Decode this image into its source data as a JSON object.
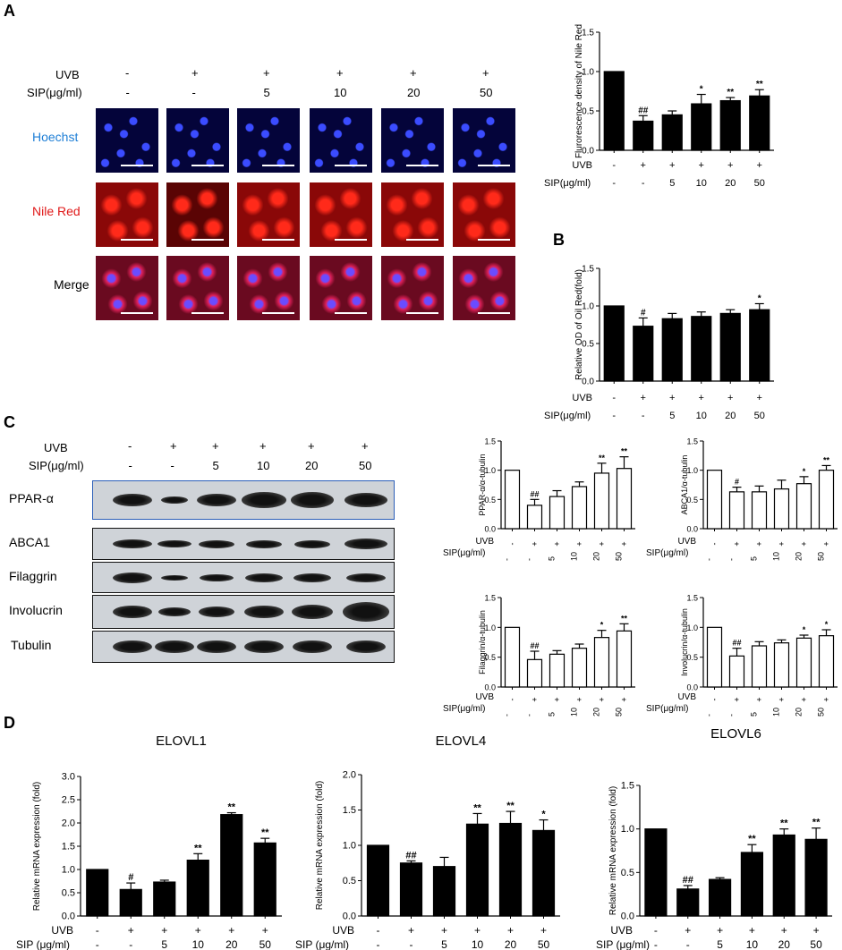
{
  "panels": {
    "A": "A",
    "B": "B",
    "C": "C",
    "D": "D"
  },
  "conditions": {
    "uvb_label": "UVB",
    "sip_label": "SIP(μg/ml)",
    "sip_label_spaced": "SIP (μg/ml)",
    "uvb": [
      "-",
      "+",
      "+",
      "+",
      "+",
      "+"
    ],
    "sip": [
      "-",
      "-",
      "5",
      "10",
      "20",
      "50"
    ]
  },
  "microscopy": {
    "rows": [
      {
        "label": "Hoechst",
        "color": "#1f7fd6"
      },
      {
        "label": "Nile Red",
        "color": "#e01818"
      },
      {
        "label": "Merge",
        "color": "#000000"
      }
    ]
  },
  "blots": {
    "rows": [
      "PPAR-α",
      "ABCA1",
      "Filaggrin",
      "Involucrin",
      "Tubulin"
    ]
  },
  "chart_data": [
    {
      "id": "A",
      "type": "bar",
      "categories": [
        "-/-",
        "+/-",
        "+/5",
        "+/10",
        "+/20",
        "+/50"
      ],
      "values": [
        1.0,
        0.37,
        0.45,
        0.59,
        0.63,
        0.69
      ],
      "errors": [
        0,
        0.07,
        0.05,
        0.12,
        0.04,
        0.08
      ],
      "marks": [
        "",
        "##",
        "",
        "*",
        "**",
        "**"
      ],
      "ylabel": "Flurorescence density of Nile Red",
      "ylim": [
        0,
        1.5
      ],
      "yticks": [
        "0.0",
        "0.5",
        "1.0",
        "1.5"
      ],
      "fill": "#000000"
    },
    {
      "id": "B",
      "type": "bar",
      "categories": [
        "-/-",
        "+/-",
        "+/5",
        "+/10",
        "+/20",
        "+/50"
      ],
      "values": [
        1.0,
        0.73,
        0.83,
        0.86,
        0.9,
        0.95
      ],
      "errors": [
        0,
        0.11,
        0.07,
        0.06,
        0.05,
        0.08
      ],
      "marks": [
        "",
        "#",
        "",
        "",
        "",
        "*"
      ],
      "ylabel": "Relative OD of Oil Red(fold)",
      "ylim": [
        0,
        1.5
      ],
      "yticks": [
        "0.0",
        "0.5",
        "1.0",
        "1.5"
      ],
      "fill": "#000000"
    },
    {
      "id": "C1",
      "type": "bar",
      "categories": [
        "-/-",
        "+/-",
        "+/5",
        "+/10",
        "+/20",
        "+/50"
      ],
      "values": [
        1.0,
        0.4,
        0.55,
        0.72,
        0.95,
        1.03
      ],
      "errors": [
        0,
        0.1,
        0.1,
        0.08,
        0.17,
        0.2
      ],
      "marks": [
        "",
        "##",
        "",
        "",
        "**",
        "**"
      ],
      "ylabel": "PPAR-α/α-tubulin",
      "ylim": [
        0,
        1.5
      ],
      "yticks": [
        "0.0",
        "0.5",
        "1.0",
        "1.5"
      ],
      "fill": "#ffffff"
    },
    {
      "id": "C2",
      "type": "bar",
      "categories": [
        "-/-",
        "+/-",
        "+/5",
        "+/10",
        "+/20",
        "+/50"
      ],
      "values": [
        1.0,
        0.63,
        0.63,
        0.68,
        0.77,
        1.0
      ],
      "errors": [
        0,
        0.08,
        0.1,
        0.15,
        0.12,
        0.08
      ],
      "marks": [
        "",
        "#",
        "",
        "",
        "*",
        "**"
      ],
      "ylabel": "ABCA1/α-tubulin",
      "ylim": [
        0,
        1.5
      ],
      "yticks": [
        "0.0",
        "0.5",
        "1.0",
        "1.5"
      ],
      "fill": "#ffffff"
    },
    {
      "id": "C3",
      "type": "bar",
      "categories": [
        "-/-",
        "+/-",
        "+/5",
        "+/10",
        "+/20",
        "+/50"
      ],
      "values": [
        1.0,
        0.46,
        0.55,
        0.65,
        0.83,
        0.94
      ],
      "errors": [
        0,
        0.14,
        0.06,
        0.07,
        0.12,
        0.12
      ],
      "marks": [
        "",
        "##",
        "",
        "",
        "*",
        "**"
      ],
      "ylabel": "Filaggrin/α-tubulin",
      "ylim": [
        0,
        1.5
      ],
      "yticks": [
        "0.0",
        "0.5",
        "1.0",
        "1.5"
      ],
      "fill": "#ffffff"
    },
    {
      "id": "C4",
      "type": "bar",
      "categories": [
        "-/-",
        "+/-",
        "+/5",
        "+/10",
        "+/20",
        "+/50"
      ],
      "values": [
        1.0,
        0.52,
        0.69,
        0.74,
        0.82,
        0.86
      ],
      "errors": [
        0,
        0.13,
        0.07,
        0.05,
        0.05,
        0.1
      ],
      "marks": [
        "",
        "##",
        "",
        "",
        "*",
        "*"
      ],
      "ylabel": "Involucrin/α-tubulin",
      "ylim": [
        0,
        1.5
      ],
      "yticks": [
        "0.0",
        "0.5",
        "1.0",
        "1.5"
      ],
      "fill": "#ffffff"
    },
    {
      "id": "D1",
      "type": "bar",
      "title": "ELOVL1",
      "categories": [
        "-/-",
        "+/-",
        "+/5",
        "+/10",
        "+/20",
        "+/50"
      ],
      "values": [
        1.0,
        0.57,
        0.73,
        1.2,
        2.18,
        1.57
      ],
      "errors": [
        0,
        0.14,
        0.04,
        0.14,
        0.04,
        0.1
      ],
      "marks": [
        "",
        "#",
        "",
        "**",
        "**",
        "**"
      ],
      "ylabel": "Relative mRNA expression (fold)",
      "ylim": [
        0,
        3.0
      ],
      "yticks": [
        "0.0",
        "0.5",
        "1.0",
        "1.5",
        "2.0",
        "2.5",
        "3.0"
      ],
      "fill": "#000000"
    },
    {
      "id": "D2",
      "type": "bar",
      "title": "ELOVL4",
      "categories": [
        "-/-",
        "+/-",
        "+/5",
        "+/10",
        "+/20",
        "+/50"
      ],
      "values": [
        1.0,
        0.75,
        0.7,
        1.3,
        1.31,
        1.21
      ],
      "errors": [
        0,
        0.03,
        0.13,
        0.15,
        0.17,
        0.15
      ],
      "marks": [
        "",
        "##",
        "",
        "**",
        "**",
        "*"
      ],
      "ylabel": "Relative mRNA expression (fold)",
      "ylim": [
        0,
        2.0
      ],
      "yticks": [
        "0.0",
        "0.5",
        "1.0",
        "1.5",
        "2.0"
      ],
      "fill": "#000000"
    },
    {
      "id": "D3",
      "type": "bar",
      "title": "ELOVL6",
      "categories": [
        "-/-",
        "+/-",
        "+/5",
        "+/10",
        "+/20",
        "+/50"
      ],
      "values": [
        1.0,
        0.31,
        0.42,
        0.73,
        0.93,
        0.88
      ],
      "errors": [
        0,
        0.04,
        0.02,
        0.09,
        0.07,
        0.13
      ],
      "marks": [
        "",
        "##",
        "",
        "**",
        "**",
        "**"
      ],
      "ylabel": "Relative mRNA expression (fold)",
      "ylim": [
        0,
        1.5
      ],
      "yticks": [
        "0.0",
        "0.5",
        "1.0",
        "1.5"
      ],
      "fill": "#000000"
    }
  ]
}
